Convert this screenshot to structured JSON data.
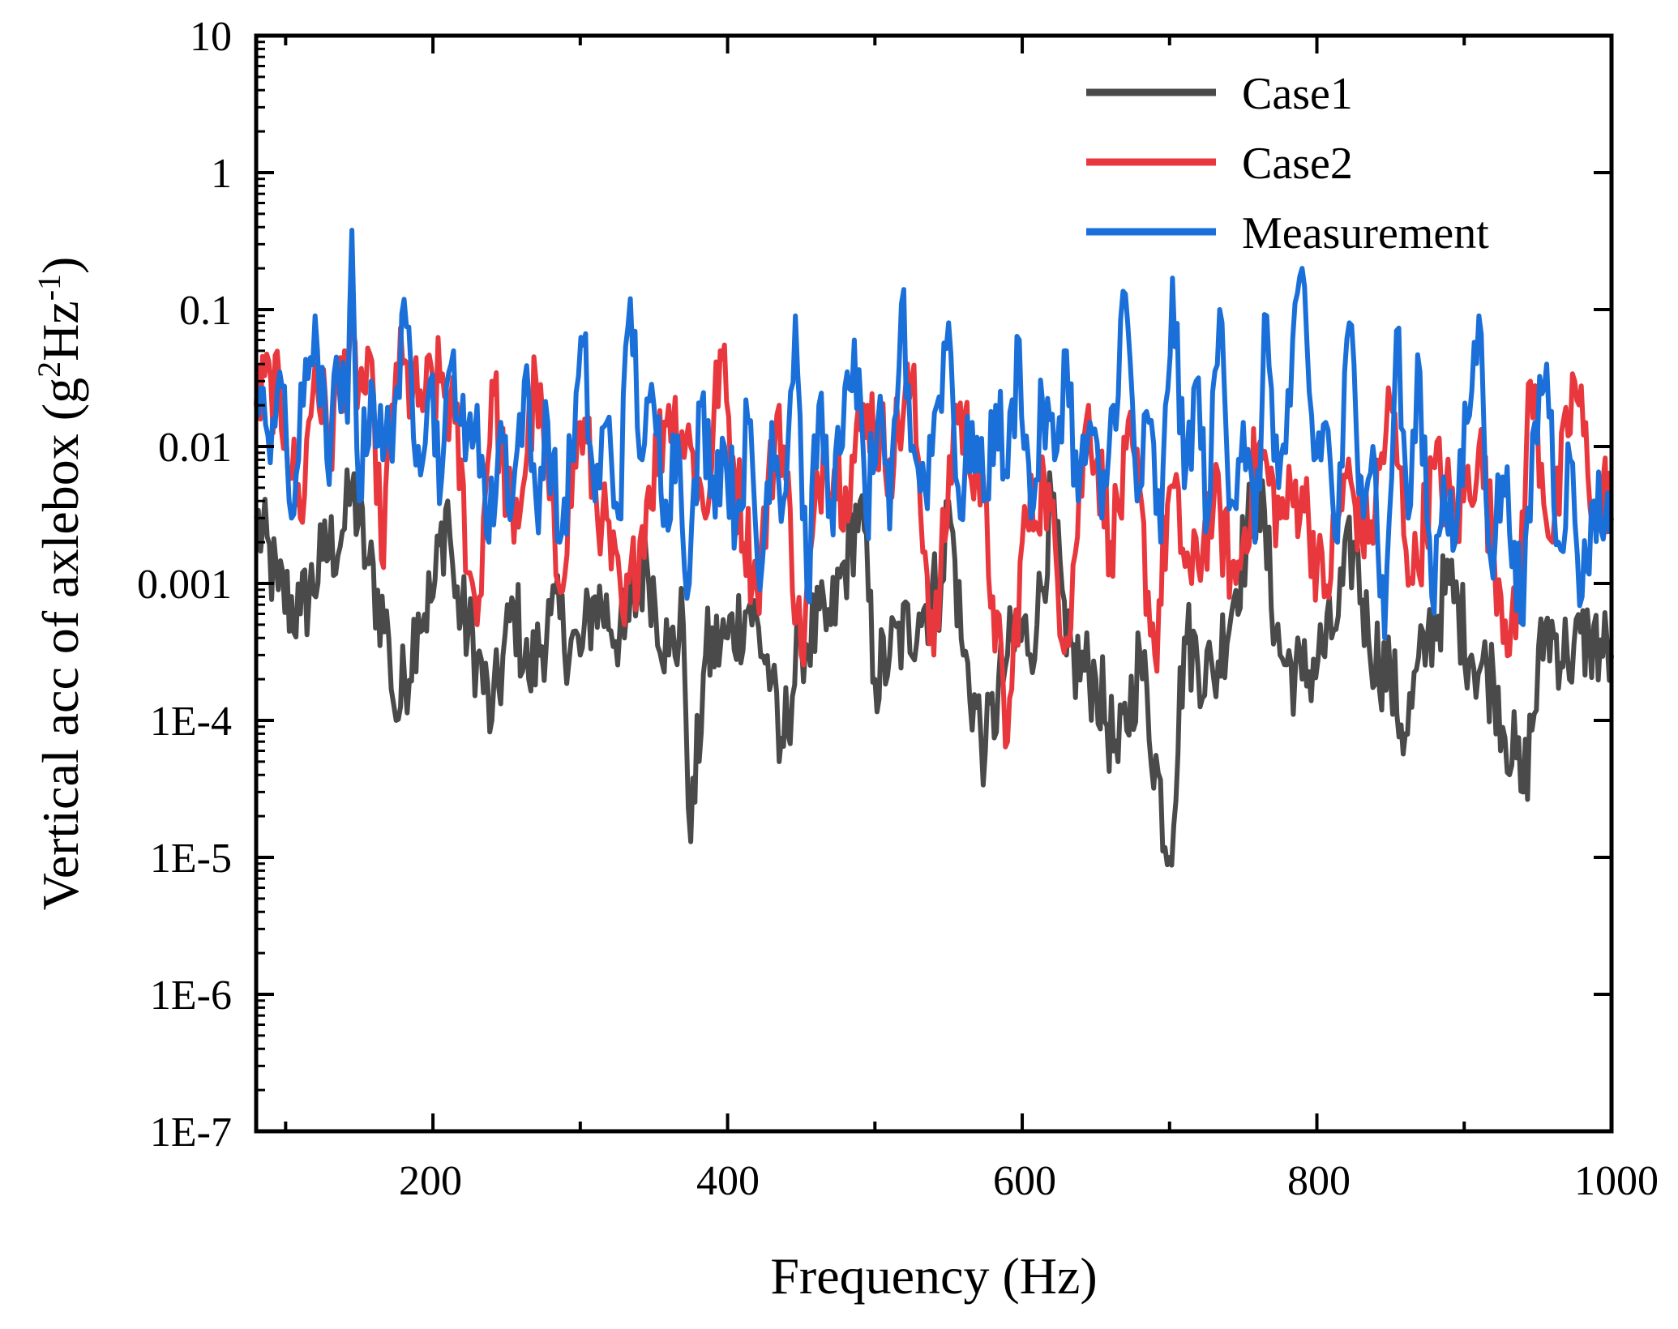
{
  "chart_data": {
    "type": "line",
    "title": "",
    "xlabel": "Frequency (Hz)",
    "ylabel_parts": [
      "Vertical acc of axlebox (g",
      "2",
      "Hz",
      "-1",
      ")"
    ],
    "xlim": [
      80,
      1000
    ],
    "ylim_log10": [
      -7,
      1
    ],
    "y_scale": "log",
    "x_ticks": [
      200,
      400,
      600,
      800,
      1000
    ],
    "x_tick_labels": [
      "200",
      "400",
      "600",
      "800",
      "1000"
    ],
    "y_ticks": [
      10,
      1,
      0.1,
      0.01,
      0.001,
      0.0001,
      1e-05,
      1e-06,
      1e-07
    ],
    "y_tick_labels": [
      "10",
      "1",
      "0.1",
      "0.01",
      "0.001",
      "1E-4",
      "1E-5",
      "1E-6",
      "1E-7"
    ],
    "legend_position": "top-right",
    "series": [
      {
        "name": "Case1",
        "color": "#4a4a4a",
        "points": [
          [
            80,
            0.003
          ],
          [
            95,
            0.0009
          ],
          [
            110,
            0.0006
          ],
          [
            125,
            0.0015
          ],
          [
            140,
            0.0025
          ],
          [
            145,
            0.005
          ],
          [
            155,
            0.0015
          ],
          [
            170,
            0.0004
          ],
          [
            175,
            0.0001
          ],
          [
            190,
            0.0006
          ],
          [
            200,
            0.0008
          ],
          [
            210,
            0.004
          ],
          [
            215,
            0.0008
          ],
          [
            230,
            0.0003
          ],
          [
            240,
            0.0001
          ],
          [
            255,
            0.0007
          ],
          [
            265,
            0.0002
          ],
          [
            280,
            0.0006
          ],
          [
            300,
            0.0003
          ],
          [
            310,
            0.0008
          ],
          [
            330,
            0.0004
          ],
          [
            345,
            0.0015
          ],
          [
            360,
            0.0003
          ],
          [
            370,
            0.0005
          ],
          [
            375,
            1.3e-05
          ],
          [
            385,
            0.0003
          ],
          [
            400,
            0.0004
          ],
          [
            415,
            0.0007
          ],
          [
            430,
            0.0002
          ],
          [
            435,
            5e-05
          ],
          [
            450,
            0.0004
          ],
          [
            470,
            0.0005
          ],
          [
            490,
            0.004
          ],
          [
            500,
            0.0002
          ],
          [
            510,
            0.0003
          ],
          [
            530,
            0.0006
          ],
          [
            545,
            0.001
          ],
          [
            550,
            0.004
          ],
          [
            560,
            0.0003
          ],
          [
            575,
            6e-05
          ],
          [
            590,
            0.0003
          ],
          [
            610,
            0.0005
          ],
          [
            620,
            0.004
          ],
          [
            630,
            0.0003
          ],
          [
            650,
            0.0002
          ],
          [
            665,
            5e-05
          ],
          [
            680,
            0.0003
          ],
          [
            700,
            1e-05
          ],
          [
            710,
            0.0004
          ],
          [
            730,
            0.0002
          ],
          [
            760,
            0.005
          ],
          [
            775,
            0.0003
          ],
          [
            790,
            0.0002
          ],
          [
            810,
            0.0004
          ],
          [
            825,
            0.002
          ],
          [
            835,
            0.0004
          ],
          [
            850,
            0.0002
          ],
          [
            860,
            8e-05
          ],
          [
            875,
            0.0004
          ],
          [
            890,
            0.001
          ],
          [
            905,
            0.0003
          ],
          [
            920,
            0.0002
          ],
          [
            940,
            3e-05
          ],
          [
            955,
            0.0005
          ],
          [
            970,
            0.0003
          ],
          [
            985,
            0.0004
          ],
          [
            1000,
            0.0003
          ]
        ]
      },
      {
        "name": "Case2",
        "color": "#e8383d",
        "points": [
          [
            80,
            0.02
          ],
          [
            90,
            0.03
          ],
          [
            100,
            0.015
          ],
          [
            110,
            0.003
          ],
          [
            120,
            0.04
          ],
          [
            130,
            0.01
          ],
          [
            140,
            0.05
          ],
          [
            150,
            0.03
          ],
          [
            160,
            0.02
          ],
          [
            165,
            0.0015
          ],
          [
            175,
            0.04
          ],
          [
            190,
            0.02
          ],
          [
            205,
            0.03
          ],
          [
            215,
            0.015
          ],
          [
            225,
            0.0012
          ],
          [
            230,
            0.0005
          ],
          [
            240,
            0.03
          ],
          [
            255,
            0.002
          ],
          [
            270,
            0.03
          ],
          [
            285,
            0.001
          ],
          [
            300,
            0.015
          ],
          [
            315,
            0.003
          ],
          [
            330,
            0.0005
          ],
          [
            345,
            0.004
          ],
          [
            360,
            0.02
          ],
          [
            375,
            0.01
          ],
          [
            385,
            0.003
          ],
          [
            395,
            0.05
          ],
          [
            405,
            0.006
          ],
          [
            420,
            0.0009
          ],
          [
            435,
            0.02
          ],
          [
            450,
            0.0003
          ],
          [
            465,
            0.01
          ],
          [
            480,
            0.005
          ],
          [
            495,
            0.02
          ],
          [
            510,
            0.008
          ],
          [
            525,
            0.03
          ],
          [
            540,
            0.0003
          ],
          [
            555,
            0.02
          ],
          [
            570,
            0.007
          ],
          [
            580,
            0.0008
          ],
          [
            590,
            7e-05
          ],
          [
            600,
            0.002
          ],
          [
            615,
            0.006
          ],
          [
            630,
            0.0004
          ],
          [
            645,
            0.02
          ],
          [
            660,
            0.002
          ],
          [
            675,
            0.01
          ],
          [
            690,
            0.0003
          ],
          [
            700,
            0.005
          ],
          [
            715,
            0.001
          ],
          [
            730,
            0.004
          ],
          [
            745,
            0.001
          ],
          [
            760,
            0.01
          ],
          [
            775,
            0.003
          ],
          [
            790,
            0.005
          ],
          [
            805,
            0.0008
          ],
          [
            820,
            0.006
          ],
          [
            835,
            0.002
          ],
          [
            850,
            0.02
          ],
          [
            865,
            0.001
          ],
          [
            880,
            0.007
          ],
          [
            895,
            0.003
          ],
          [
            910,
            0.01
          ],
          [
            925,
            0.0008
          ],
          [
            935,
            0.0004
          ],
          [
            945,
            0.03
          ],
          [
            960,
            0.002
          ],
          [
            975,
            0.03
          ],
          [
            990,
            0.003
          ],
          [
            1000,
            0.006
          ]
        ]
      },
      {
        "name": "Measurement",
        "color": "#1a6fd8",
        "points": [
          [
            80,
            0.02
          ],
          [
            88,
            0.012
          ],
          [
            96,
            0.035
          ],
          [
            104,
            0.003
          ],
          [
            112,
            0.02
          ],
          [
            120,
            0.09
          ],
          [
            128,
            0.008
          ],
          [
            136,
            0.03
          ],
          [
            142,
            0.015
          ],
          [
            145,
            0.38
          ],
          [
            150,
            0.004
          ],
          [
            158,
            0.03
          ],
          [
            166,
            0.008
          ],
          [
            174,
            0.02
          ],
          [
            182,
            0.075
          ],
          [
            190,
            0.01
          ],
          [
            198,
            0.03
          ],
          [
            206,
            0.006
          ],
          [
            214,
            0.05
          ],
          [
            222,
            0.008
          ],
          [
            230,
            0.02
          ],
          [
            238,
            0.002
          ],
          [
            246,
            0.015
          ],
          [
            254,
            0.004
          ],
          [
            262,
            0.03
          ],
          [
            270,
            0.004
          ],
          [
            278,
            0.015
          ],
          [
            286,
            0.002
          ],
          [
            294,
            0.008
          ],
          [
            302,
            0.055
          ],
          [
            310,
            0.004
          ],
          [
            318,
            0.015
          ],
          [
            326,
            0.003
          ],
          [
            334,
            0.12
          ],
          [
            342,
            0.008
          ],
          [
            350,
            0.02
          ],
          [
            358,
            0.004
          ],
          [
            366,
            0.012
          ],
          [
            374,
            0.001
          ],
          [
            382,
            0.02
          ],
          [
            390,
            0.006
          ],
          [
            398,
            0.01
          ],
          [
            406,
            0.003
          ],
          [
            414,
            0.015
          ],
          [
            422,
            0.0009
          ],
          [
            430,
            0.015
          ],
          [
            438,
            0.004
          ],
          [
            446,
            0.09
          ],
          [
            454,
            0.0008
          ],
          [
            462,
            0.02
          ],
          [
            470,
            0.004
          ],
          [
            478,
            0.01
          ],
          [
            486,
            0.06
          ],
          [
            494,
            0.003
          ],
          [
            502,
            0.015
          ],
          [
            510,
            0.0025
          ],
          [
            518,
            0.11
          ],
          [
            526,
            0.01
          ],
          [
            534,
            0.005
          ],
          [
            542,
            0.02
          ],
          [
            550,
            0.08
          ],
          [
            558,
            0.003
          ],
          [
            566,
            0.015
          ],
          [
            574,
            0.004
          ],
          [
            582,
            0.02
          ],
          [
            590,
            0.006
          ],
          [
            598,
            0.06
          ],
          [
            606,
            0.003
          ],
          [
            614,
            0.02
          ],
          [
            622,
            0.008
          ],
          [
            630,
            0.05
          ],
          [
            638,
            0.004
          ],
          [
            646,
            0.015
          ],
          [
            654,
            0.003
          ],
          [
            662,
            0.02
          ],
          [
            670,
            0.13
          ],
          [
            678,
            0.004
          ],
          [
            686,
            0.015
          ],
          [
            694,
            0.002
          ],
          [
            702,
            0.17
          ],
          [
            710,
            0.005
          ],
          [
            718,
            0.03
          ],
          [
            726,
            0.003
          ],
          [
            734,
            0.1
          ],
          [
            742,
            0.004
          ],
          [
            750,
            0.015
          ],
          [
            758,
            0.002
          ],
          [
            766,
            0.09
          ],
          [
            774,
            0.005
          ],
          [
            782,
            0.02
          ],
          [
            790,
            0.2
          ],
          [
            798,
            0.008
          ],
          [
            806,
            0.015
          ],
          [
            814,
            0.002
          ],
          [
            822,
            0.08
          ],
          [
            830,
            0.006
          ],
          [
            838,
            0.01
          ],
          [
            846,
            0.0004
          ],
          [
            854,
            0.07
          ],
          [
            862,
            0.003
          ],
          [
            870,
            0.035
          ],
          [
            878,
            0.0008
          ],
          [
            886,
            0.006
          ],
          [
            894,
            0.002
          ],
          [
            902,
            0.015
          ],
          [
            910,
            0.09
          ],
          [
            918,
            0.0015
          ],
          [
            926,
            0.006
          ],
          [
            934,
            0.002
          ],
          [
            940,
            0.0005
          ],
          [
            948,
            0.015
          ],
          [
            956,
            0.04
          ],
          [
            964,
            0.002
          ],
          [
            972,
            0.008
          ],
          [
            980,
            0.0008
          ],
          [
            988,
            0.004
          ],
          [
            996,
            0.003
          ],
          [
            1000,
            0.003
          ]
        ]
      }
    ]
  }
}
